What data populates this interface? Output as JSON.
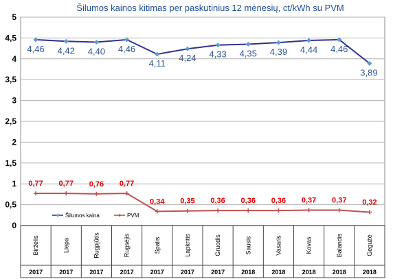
{
  "chart_data": {
    "type": "line",
    "title": "Šilumos kainos kitimas per paskutinius 12 mėnesių, ct/kWh su PVM",
    "categories": [
      "Birželis",
      "Liepa",
      "Rugpjūtis",
      "Rugsėjis",
      "Spalis",
      "Lapkritis",
      "Gruodis",
      "Sausis",
      "Vasaris",
      "Kovas",
      "Balandis",
      "Gegužė"
    ],
    "years": [
      "2017",
      "2017",
      "2017",
      "2017",
      "2017",
      "2017",
      "2017",
      "2018",
      "2018",
      "2018",
      "2018",
      "2018"
    ],
    "ylim": [
      0,
      5
    ],
    "yticks": [
      "0",
      "0,5",
      "1",
      "1,5",
      "2",
      "2,5",
      "3",
      "3,5",
      "4",
      "4,5",
      "5"
    ],
    "grid": true,
    "legend_position": "bottom-left",
    "series": [
      {
        "name": "Šilumos kaina",
        "color": "#2e3192",
        "marker_color": "#5b9bd5",
        "values": [
          4.46,
          4.42,
          4.4,
          4.46,
          4.11,
          4.24,
          4.33,
          4.35,
          4.39,
          4.44,
          4.46,
          3.89
        ],
        "labels": [
          "4,46",
          "4,42",
          "4,40",
          "4,46",
          "4,11",
          "4,24",
          "4,33",
          "4,35",
          "4,39",
          "4,44",
          "4,46",
          "3,89"
        ]
      },
      {
        "name": "PVM",
        "color": "#c0504d",
        "marker_color": "#c0504d",
        "values": [
          0.77,
          0.77,
          0.76,
          0.77,
          0.34,
          0.35,
          0.36,
          0.36,
          0.36,
          0.37,
          0.37,
          0.32
        ],
        "labels": [
          "0,77",
          "0,77",
          "0,76",
          "0,77",
          "0,34",
          "0,35",
          "0,36",
          "0,36",
          "0,36",
          "0,37",
          "0,37",
          "0,32"
        ]
      }
    ]
  }
}
